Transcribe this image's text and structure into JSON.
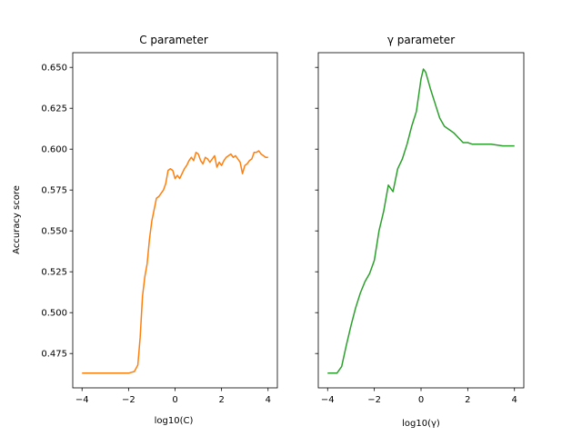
{
  "chart_data": [
    {
      "type": "line",
      "title": "C parameter",
      "xlabel": "log10(C)",
      "ylabel": "Accuracy score",
      "xlim": [
        -4.4,
        4.4
      ],
      "ylim": [
        0.454,
        0.659
      ],
      "xticks": [
        -4,
        -2,
        0,
        2,
        4
      ],
      "xtick_labels": [
        "−4",
        "−2",
        "0",
        "2",
        "4"
      ],
      "yticks": [
        0.475,
        0.5,
        0.525,
        0.55,
        0.575,
        0.6,
        0.625,
        0.65
      ],
      "ytick_labels": [
        "0.475",
        "0.500",
        "0.525",
        "0.550",
        "0.575",
        "0.600",
        "0.625",
        "0.650"
      ],
      "grid": false,
      "series": [
        {
          "color": "#ff7f0e",
          "x": [
            -4.0,
            -3.0,
            -2.0,
            -1.75,
            -1.6,
            -1.5,
            -1.4,
            -1.3,
            -1.2,
            -1.1,
            -1.0,
            -0.9,
            -0.8,
            -0.7,
            -0.6,
            -0.5,
            -0.4,
            -0.3,
            -0.2,
            -0.1,
            0.0,
            0.1,
            0.2,
            0.3,
            0.4,
            0.5,
            0.6,
            0.7,
            0.8,
            0.9,
            1.0,
            1.1,
            1.2,
            1.3,
            1.4,
            1.5,
            1.6,
            1.7,
            1.8,
            1.9,
            2.0,
            2.1,
            2.2,
            2.3,
            2.4,
            2.5,
            2.6,
            2.7,
            2.8,
            2.9,
            3.0,
            3.1,
            3.2,
            3.3,
            3.4,
            3.5,
            3.6,
            3.7,
            3.8,
            3.9,
            4.0
          ],
          "y": [
            0.463,
            0.463,
            0.463,
            0.464,
            0.468,
            0.485,
            0.51,
            0.522,
            0.53,
            0.545,
            0.556,
            0.563,
            0.57,
            0.571,
            0.573,
            0.575,
            0.579,
            0.587,
            0.588,
            0.587,
            0.582,
            0.584,
            0.582,
            0.585,
            0.588,
            0.59,
            0.593,
            0.595,
            0.593,
            0.598,
            0.597,
            0.593,
            0.591,
            0.595,
            0.594,
            0.592,
            0.594,
            0.596,
            0.589,
            0.592,
            0.59,
            0.593,
            0.595,
            0.596,
            0.597,
            0.595,
            0.596,
            0.594,
            0.592,
            0.585,
            0.59,
            0.591,
            0.593,
            0.594,
            0.598,
            0.598,
            0.599,
            0.597,
            0.596,
            0.595,
            0.595
          ]
        }
      ]
    },
    {
      "type": "line",
      "title": "γ parameter",
      "xlabel": "log10(γ)",
      "ylabel": "",
      "xlim": [
        -4.4,
        4.4
      ],
      "ylim": [
        0.454,
        0.659
      ],
      "xticks": [
        -4,
        -2,
        0,
        2,
        4
      ],
      "xtick_labels": [
        "−4",
        "−2",
        "0",
        "2",
        "4"
      ],
      "yticks": [
        0.475,
        0.5,
        0.525,
        0.55,
        0.575,
        0.6,
        0.625,
        0.65
      ],
      "ytick_labels": [],
      "grid": false,
      "series": [
        {
          "color": "#2ca02c",
          "x": [
            -4.0,
            -3.6,
            -3.4,
            -3.2,
            -3.0,
            -2.8,
            -2.6,
            -2.4,
            -2.2,
            -2.0,
            -1.8,
            -1.6,
            -1.4,
            -1.2,
            -1.0,
            -0.8,
            -0.6,
            -0.4,
            -0.2,
            0.0,
            0.1,
            0.2,
            0.4,
            0.6,
            0.8,
            1.0,
            1.2,
            1.4,
            1.6,
            1.8,
            2.0,
            2.2,
            2.4,
            2.6,
            3.0,
            3.5,
            4.0
          ],
          "y": [
            0.463,
            0.463,
            0.467,
            0.48,
            0.492,
            0.503,
            0.512,
            0.519,
            0.524,
            0.532,
            0.55,
            0.562,
            0.578,
            0.574,
            0.588,
            0.594,
            0.603,
            0.614,
            0.623,
            0.643,
            0.649,
            0.647,
            0.637,
            0.628,
            0.619,
            0.614,
            0.612,
            0.61,
            0.607,
            0.604,
            0.604,
            0.603,
            0.603,
            0.603,
            0.603,
            0.602,
            0.602
          ]
        }
      ]
    }
  ]
}
